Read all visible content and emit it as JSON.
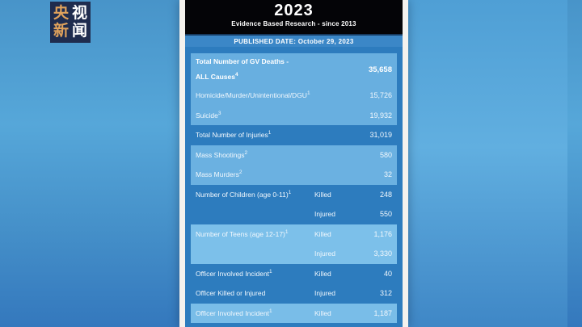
{
  "logo": {
    "name": "CCTV News (央视新闻)",
    "chars": [
      {
        "t": "央",
        "cls": "gold"
      },
      {
        "t": "视",
        "cls": "white"
      },
      {
        "t": "新",
        "cls": "gold"
      },
      {
        "t": "闻",
        "cls": "white"
      }
    ],
    "colors": {
      "background": "#1f2c4e",
      "gold": "#e0a25c",
      "white": "#ffffff"
    }
  },
  "poster": {
    "year": "2023",
    "subtitle": "Evidence Based Research - since 2013",
    "published_date": "PUBLISHED DATE: October 29, 2023",
    "colors": {
      "header_bg": "#040407",
      "published_bar": "#3b87c7",
      "table_bg": "#2d7cbe",
      "shaded_boxes": [
        "#68afe0",
        "#6bb1e1",
        "#7cc0ea",
        "#79bde8"
      ],
      "text": "#ffffff"
    }
  },
  "table": {
    "rows": [
      {
        "label": "Total Number of GV Deaths -",
        "label2": "ALL Causes",
        "sup2": "4",
        "col2": "",
        "value": "35,658",
        "tone": "s1",
        "bold": true,
        "two_line": true
      },
      {
        "label": "Homicide/Murder/Unintentional/DGU",
        "sup": "1",
        "col2": "",
        "value": "15,726",
        "tone": "s1"
      },
      {
        "label": "Suicide",
        "sup": "3",
        "col2": "",
        "value": "19,932",
        "tone": "s1"
      },
      {
        "label": "Total Number of Injuries",
        "sup": "1",
        "col2": "",
        "value": "31,019",
        "tone": ""
      },
      {
        "label": "Mass Shootings",
        "sup": "2",
        "col2": "",
        "value": "580",
        "tone": "s2"
      },
      {
        "label": "Mass Murders",
        "sup": "2",
        "col2": "",
        "value": "32",
        "tone": "s2"
      },
      {
        "label": "Number of Children (age 0-11)",
        "sup": "1",
        "col2": "Killed",
        "value": "248",
        "tone": ""
      },
      {
        "label": "",
        "col2": "Injured",
        "value": "550",
        "tone": ""
      },
      {
        "label": "Number of Teens (age 12-17)",
        "sup": "1",
        "col2": "Killed",
        "value": "1,176",
        "tone": "s3"
      },
      {
        "label": "",
        "col2": "Injured",
        "value": "3,330",
        "tone": "s3"
      },
      {
        "label": "Officer Involved Incident",
        "sup": "1",
        "col2": "Killed",
        "value": "40",
        "tone": ""
      },
      {
        "label": "Officer Killed or Injured",
        "col2": "Injured",
        "value": "312",
        "tone": ""
      },
      {
        "label": "Officer Involved Incident",
        "sup": "1",
        "col2": "Killed",
        "value": "1,187",
        "tone": "s4"
      }
    ]
  }
}
